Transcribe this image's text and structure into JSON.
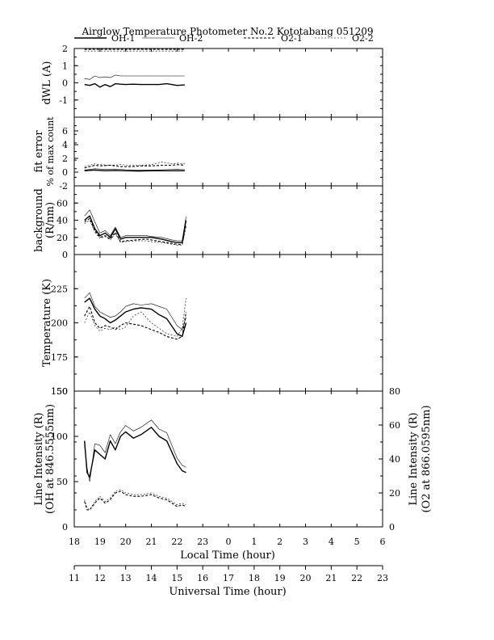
{
  "title": "Airglow Temperature Photometer No.2  Kototabang 051209",
  "legend": [
    {
      "name": "OH-1",
      "color": "#000000",
      "dash": "",
      "width": 1.4
    },
    {
      "name": "OH-2",
      "color": "#000000",
      "dash": "",
      "width": 0.6
    },
    {
      "name": "O2-1",
      "color": "#000000",
      "dash": "3,2",
      "width": 1.1
    },
    {
      "name": "O2-2",
      "color": "#000000",
      "dash": "2,2",
      "width": 0.6
    }
  ],
  "x_local": {
    "label": "Local Time (hour)",
    "ticks": [
      "18",
      "19",
      "20",
      "21",
      "22",
      "23",
      "0",
      "1",
      "2",
      "3",
      "4",
      "5",
      "6"
    ]
  },
  "x_ut": {
    "label": "Universal Time (hour)",
    "ticks": [
      "11",
      "12",
      "13",
      "14",
      "15",
      "16",
      "17",
      "18",
      "19",
      "20",
      "21",
      "22",
      "23"
    ]
  },
  "chart_data": [
    {
      "type": "line",
      "name": "dwl",
      "ylabel": "dWL (A)",
      "ylim": [
        -2,
        2
      ],
      "yticks": [
        "2",
        "1",
        "0",
        "-1"
      ],
      "x_domain": [
        18,
        30
      ],
      "series": [
        {
          "name": "OH-1",
          "x": [
            18.4,
            18.6,
            18.8,
            19.0,
            19.2,
            19.4,
            19.6,
            19.8,
            20.0,
            20.3,
            20.6,
            21.0,
            21.3,
            21.6,
            22.0,
            22.3
          ],
          "y": [
            -0.1,
            -0.15,
            -0.05,
            -0.25,
            -0.1,
            -0.22,
            -0.05,
            -0.08,
            -0.1,
            -0.08,
            -0.1,
            -0.1,
            -0.1,
            -0.05,
            -0.15,
            -0.12
          ]
        },
        {
          "name": "OH-2",
          "x": [
            18.4,
            18.6,
            18.8,
            19.0,
            19.2,
            19.4,
            19.6,
            19.8,
            20.0,
            20.5,
            21.0,
            21.5,
            22.0,
            22.3
          ],
          "y": [
            0.25,
            0.2,
            0.4,
            0.3,
            0.35,
            0.3,
            0.45,
            0.4,
            0.4,
            0.4,
            0.4,
            0.4,
            0.4,
            0.4
          ]
        },
        {
          "name": "O2-1",
          "x": [
            18.4,
            19.0,
            20.0,
            21.0,
            22.0,
            22.3
          ],
          "y": [
            1.95,
            1.95,
            1.95,
            1.95,
            1.95,
            1.95
          ]
        },
        {
          "name": "O2-2",
          "x": [
            18.4,
            19.0,
            20.0,
            21.0,
            22.0,
            22.3
          ],
          "y": [
            1.85,
            1.85,
            1.85,
            1.85,
            1.85,
            1.85
          ]
        }
      ]
    },
    {
      "type": "line",
      "name": "fit-error",
      "ylabel": "fit error",
      "ylabel2": "% of max count",
      "ylim": [
        -2,
        8
      ],
      "yticks": [
        "-2",
        "6",
        "4",
        "2",
        "0"
      ],
      "x_domain": [
        18,
        30
      ],
      "series": [
        {
          "name": "OH-1",
          "x": [
            18.4,
            18.8,
            19.2,
            19.6,
            20.0,
            20.5,
            21.0,
            21.5,
            22.0,
            22.3
          ],
          "y": [
            0.2,
            0.3,
            0.2,
            0.25,
            0.2,
            0.15,
            0.2,
            0.2,
            0.2,
            0.2
          ]
        },
        {
          "name": "OH-2",
          "x": [
            18.4,
            18.8,
            19.2,
            19.6,
            20.0,
            20.5,
            21.0,
            21.5,
            22.0,
            22.3
          ],
          "y": [
            0.3,
            0.5,
            0.4,
            0.45,
            0.35,
            0.3,
            0.3,
            0.35,
            0.4,
            0.35
          ]
        },
        {
          "name": "O2-1",
          "x": [
            18.4,
            18.8,
            19.0,
            19.4,
            19.8,
            20.2,
            20.6,
            21.0,
            21.4,
            21.8,
            22.0,
            22.3
          ],
          "y": [
            0.6,
            1.0,
            0.9,
            1.0,
            0.8,
            0.8,
            0.9,
            0.9,
            1.0,
            1.0,
            1.1,
            1.0
          ]
        },
        {
          "name": "O2-2",
          "x": [
            18.4,
            18.8,
            19.0,
            19.4,
            19.8,
            20.2,
            20.6,
            21.0,
            21.4,
            21.8,
            22.0,
            22.3
          ],
          "y": [
            0.8,
            1.2,
            1.1,
            1.0,
            1.1,
            1.0,
            1.0,
            1.1,
            1.5,
            1.2,
            1.3,
            1.2
          ]
        }
      ]
    },
    {
      "type": "line",
      "name": "background",
      "ylabel": "background",
      "ylabel2": "(R/nm)",
      "ylim": [
        0,
        80
      ],
      "yticks": [
        "60",
        "40",
        "20",
        "0"
      ],
      "x_domain": [
        18,
        30
      ],
      "series": [
        {
          "name": "OH-1",
          "x": [
            18.4,
            18.6,
            18.8,
            19.0,
            19.2,
            19.4,
            19.6,
            19.8,
            20.0,
            20.4,
            20.8,
            21.0,
            21.4,
            21.8,
            22.0,
            22.2,
            22.35
          ],
          "y": [
            40,
            45,
            30,
            22,
            25,
            20,
            30,
            18,
            20,
            20,
            20,
            20,
            18,
            15,
            14,
            14,
            40
          ]
        },
        {
          "name": "OH-2",
          "x": [
            18.4,
            18.6,
            18.8,
            19.0,
            19.2,
            19.4,
            19.6,
            19.8,
            20.0,
            20.4,
            20.8,
            21.0,
            21.4,
            21.8,
            22.0,
            22.2,
            22.35
          ],
          "y": [
            45,
            52,
            38,
            25,
            28,
            22,
            32,
            20,
            22,
            22,
            22,
            21,
            20,
            17,
            16,
            16,
            44
          ]
        },
        {
          "name": "O2-1",
          "x": [
            18.4,
            18.6,
            18.8,
            19.0,
            19.2,
            19.4,
            19.6,
            19.8,
            20.0,
            20.4,
            20.8,
            21.0,
            21.4,
            21.8,
            22.0,
            22.2,
            22.35
          ],
          "y": [
            38,
            42,
            28,
            20,
            22,
            18,
            26,
            15,
            16,
            17,
            18,
            17,
            15,
            13,
            12,
            12,
            35
          ]
        },
        {
          "name": "O2-2",
          "x": [
            18.4,
            18.6,
            18.8,
            19.0,
            19.2,
            19.4,
            19.6,
            19.8,
            20.0,
            20.4,
            20.8,
            21.0,
            21.4,
            21.8,
            22.0,
            22.2,
            22.35
          ],
          "y": [
            36,
            40,
            26,
            19,
            21,
            17,
            24,
            14,
            15,
            16,
            16,
            15,
            14,
            12,
            11,
            11,
            33
          ]
        }
      ]
    },
    {
      "type": "line",
      "name": "temperature",
      "ylabel": "Temperature (K)",
      "ylim": [
        150,
        250
      ],
      "yticks": [
        "225",
        "200",
        "175",
        "150"
      ],
      "x_domain": [
        18,
        30
      ],
      "series": [
        {
          "name": "OH-1",
          "x": [
            18.4,
            18.6,
            18.8,
            19.0,
            19.2,
            19.4,
            19.6,
            19.8,
            20.0,
            20.3,
            20.6,
            21.0,
            21.3,
            21.6,
            22.0,
            22.2,
            22.35
          ],
          "y": [
            215,
            218,
            210,
            205,
            203,
            200,
            202,
            205,
            208,
            210,
            211,
            210,
            206,
            203,
            192,
            190,
            200
          ]
        },
        {
          "name": "OH-2",
          "x": [
            18.4,
            18.6,
            18.8,
            19.0,
            19.2,
            19.4,
            19.6,
            19.8,
            20.0,
            20.3,
            20.6,
            21.0,
            21.3,
            21.6,
            22.0,
            22.2,
            22.35
          ],
          "y": [
            218,
            222,
            212,
            208,
            206,
            204,
            205,
            208,
            212,
            214,
            213,
            214,
            212,
            210,
            198,
            195,
            204
          ]
        },
        {
          "name": "O2-1",
          "x": [
            18.4,
            18.6,
            18.8,
            19.0,
            19.2,
            19.4,
            19.6,
            19.8,
            20.0,
            20.3,
            20.6,
            21.0,
            21.3,
            21.6,
            22.0,
            22.2,
            22.35
          ],
          "y": [
            205,
            212,
            200,
            196,
            198,
            197,
            195,
            198,
            200,
            199,
            198,
            195,
            193,
            190,
            188,
            190,
            208
          ]
        },
        {
          "name": "O2-2",
          "x": [
            18.4,
            18.6,
            18.8,
            19.0,
            19.2,
            19.4,
            19.6,
            19.8,
            20.0,
            20.3,
            20.6,
            21.0,
            21.3,
            21.6,
            22.0,
            22.2,
            22.35
          ],
          "y": [
            200,
            208,
            198,
            194,
            196,
            195,
            197,
            195,
            197,
            205,
            208,
            200,
            196,
            192,
            190,
            196,
            218
          ]
        }
      ]
    },
    {
      "type": "line",
      "name": "line-intensity",
      "ylabel": "Line Intensity (R)",
      "ylabel2": "(OH at 846.5555nm)",
      "ylabel_right": "Line Intensity (R)",
      "ylabel_right2": "(O2 at 866.0595nm)",
      "ylim": [
        0,
        150
      ],
      "yticks": [
        "150",
        "100",
        "50",
        "0"
      ],
      "ylim_right": [
        0,
        80
      ],
      "yticks_right": [
        "80",
        "60",
        "40",
        "20",
        "0"
      ],
      "x_domain": [
        18,
        30
      ],
      "series": [
        {
          "name": "OH-1",
          "axis": "left",
          "x": [
            18.4,
            18.5,
            18.6,
            18.8,
            19.0,
            19.2,
            19.4,
            19.6,
            19.8,
            20.0,
            20.3,
            20.6,
            21.0,
            21.3,
            21.6,
            22.0,
            22.2,
            22.35
          ],
          "y": [
            95,
            60,
            55,
            85,
            80,
            75,
            95,
            85,
            100,
            105,
            98,
            102,
            110,
            100,
            95,
            70,
            62,
            60
          ]
        },
        {
          "name": "OH-2",
          "axis": "left",
          "x": [
            18.4,
            18.5,
            18.6,
            18.8,
            19.0,
            19.2,
            19.4,
            19.6,
            19.8,
            20.0,
            20.3,
            20.6,
            21.0,
            21.3,
            21.6,
            22.0,
            22.2,
            22.35
          ],
          "y": [
            90,
            65,
            50,
            92,
            90,
            82,
            102,
            92,
            105,
            112,
            106,
            110,
            118,
            108,
            104,
            76,
            68,
            66
          ]
        },
        {
          "name": "O2-1",
          "axis": "right",
          "x": [
            18.4,
            18.5,
            18.6,
            18.8,
            19.0,
            19.2,
            19.4,
            19.6,
            19.8,
            20.0,
            20.3,
            20.6,
            21.0,
            21.3,
            21.6,
            22.0,
            22.2,
            22.35
          ],
          "y": [
            15,
            10,
            10,
            14,
            17,
            14,
            16,
            20,
            21,
            19,
            18,
            18,
            19,
            17,
            16,
            12,
            13,
            12
          ]
        },
        {
          "name": "O2-2",
          "axis": "right",
          "x": [
            18.4,
            18.5,
            18.6,
            18.8,
            19.0,
            19.2,
            19.4,
            19.6,
            19.8,
            20.0,
            20.3,
            20.6,
            21.0,
            21.3,
            21.6,
            22.0,
            22.2,
            22.35
          ],
          "y": [
            16,
            11,
            10,
            15,
            18,
            15,
            17,
            21,
            22,
            20,
            19,
            19,
            20,
            18,
            17,
            13,
            14,
            13
          ]
        }
      ]
    }
  ]
}
